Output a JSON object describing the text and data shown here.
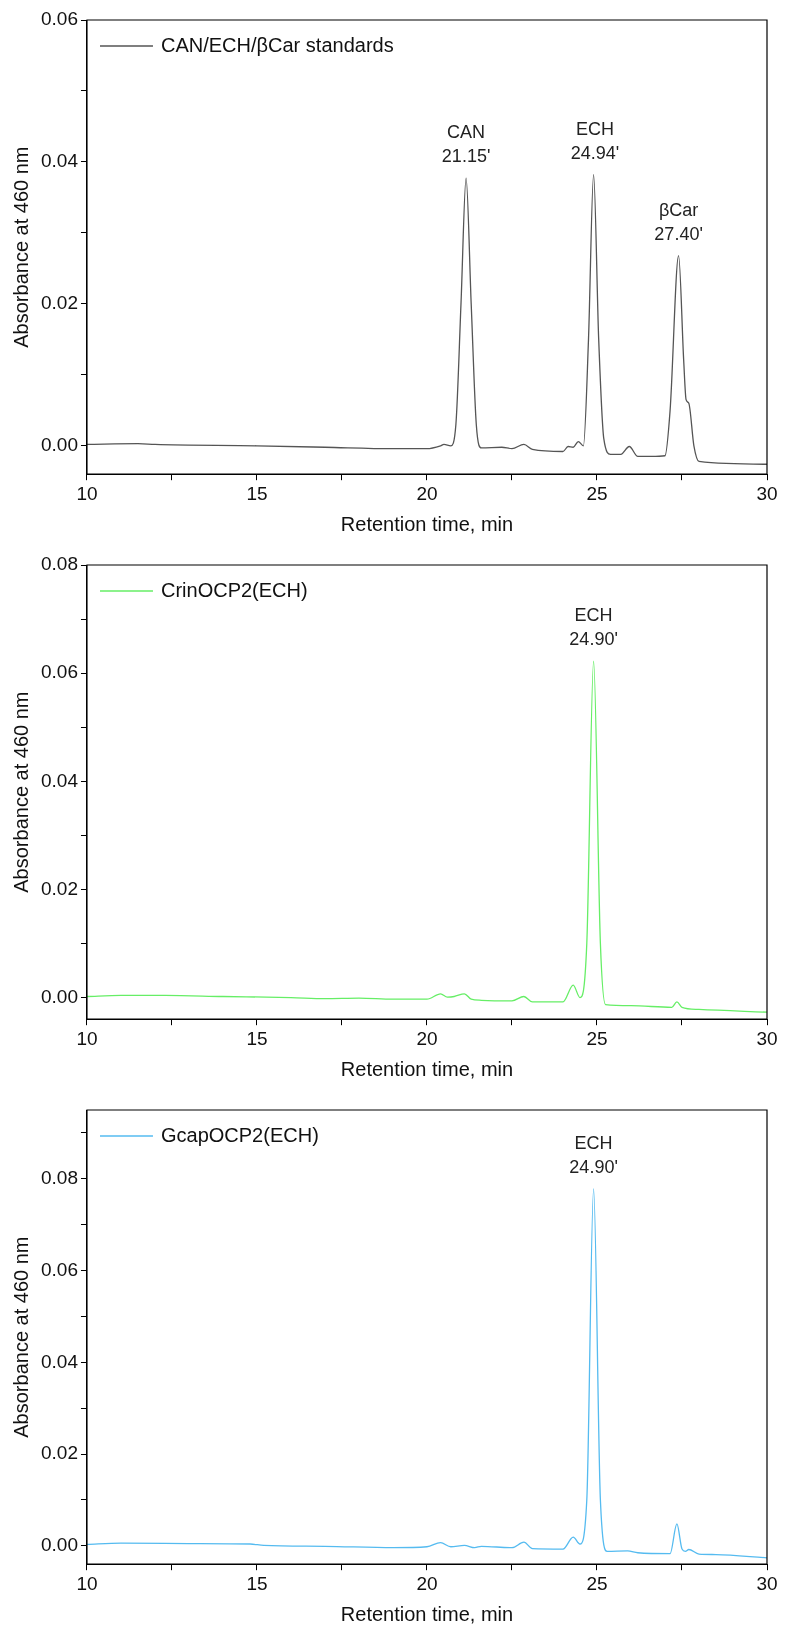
{
  "chart_data": [
    {
      "type": "line",
      "xlabel": "Retention time, min",
      "ylabel": "Absorbance at 460 nm",
      "legend": "top left",
      "marker": "none",
      "xlim": [
        10,
        30
      ],
      "ylim": [
        -0.004,
        0.06
      ],
      "xticks": [
        10,
        {
          "value": 12.5,
          "label": null
        },
        15,
        {
          "value": 17.5,
          "label": null
        },
        20,
        {
          "value": 22.5,
          "label": null
        },
        25,
        {
          "value": 27.5,
          "label": null
        },
        30
      ],
      "yticks": [
        {
          "value": 0,
          "label": "0.00"
        },
        {
          "value": 0.01,
          "label": null
        },
        {
          "value": 0.02,
          "label": "0.02"
        },
        {
          "value": 0.03,
          "label": null
        },
        {
          "value": 0.04,
          "label": "0.04"
        },
        {
          "value": 0.05,
          "label": null
        },
        {
          "value": 0.06,
          "label": "0.06"
        }
      ],
      "series": [
        {
          "name": "CAN/ECH/βCar standards",
          "color": "#555555",
          "x": [
            10,
            11.5,
            12,
            15,
            17,
            19,
            20,
            20.4,
            20.5,
            20.7,
            20.85,
            21,
            21.15,
            21.3,
            21.45,
            21.6,
            22.2,
            22.5,
            22.85,
            23.1,
            24,
            24.15,
            24.3,
            24.45,
            24.6,
            24.75,
            24.9,
            25.05,
            25.2,
            25.4,
            25.7,
            25.95,
            26.2,
            26.6,
            27,
            27.15,
            27.4,
            27.55,
            27.62,
            27.7,
            27.85,
            28,
            30
          ],
          "values": [
            0.0002,
            0.0003,
            0.0002,
            0,
            -0.0002,
            -0.0004,
            -0.0004,
            0,
            0.0002,
            0,
            0.003,
            0.02,
            0.0377,
            0.02,
            0.003,
            -0.0003,
            -0.0002,
            -0.0004,
            0.0002,
            -0.0005,
            -0.0008,
            -0.0001,
            -0.0002,
            0.0006,
            0,
            0.015,
            0.0382,
            0.015,
            0.001,
            -0.0012,
            -0.0012,
            -0.0001,
            -0.0015,
            -0.0015,
            -0.0014,
            0.005,
            0.0268,
            0.012,
            0.0065,
            0.006,
            0,
            -0.0022,
            -0.0026
          ]
        }
      ],
      "annotations": [
        {
          "text": "CAN\n21.15'",
          "x": 21.15,
          "y": 0.0377
        },
        {
          "text": "ECH\n24.94'",
          "x": 24.94,
          "y": 0.0382
        },
        {
          "text": "βCar\n27.40'",
          "x": 27.4,
          "y": 0.0268
        }
      ]
    },
    {
      "type": "line",
      "xlabel": "Retention time, min",
      "ylabel": "Absorbance at 460 nm",
      "legend": "top left",
      "marker": "none",
      "xlim": [
        10,
        30
      ],
      "ylim": [
        -0.004,
        0.08
      ],
      "xticks": [
        10,
        {
          "value": 12.5,
          "label": null
        },
        15,
        {
          "value": 17.5,
          "label": null
        },
        20,
        {
          "value": 22.5,
          "label": null
        },
        25,
        {
          "value": 27.5,
          "label": null
        },
        30
      ],
      "yticks": [
        {
          "value": 0,
          "label": "0.00"
        },
        {
          "value": 0.01,
          "label": null
        },
        {
          "value": 0.02,
          "label": "0.02"
        },
        {
          "value": 0.03,
          "label": null
        },
        {
          "value": 0.04,
          "label": "0.04"
        },
        {
          "value": 0.05,
          "label": null
        },
        {
          "value": 0.06,
          "label": "0.06"
        },
        {
          "value": 0.07,
          "label": null
        },
        {
          "value": 0.08,
          "label": "0.08"
        }
      ],
      "series": [
        {
          "name": "CrinOCP2(ECH)",
          "color": "#66ee66",
          "x": [
            10,
            11,
            12.3,
            14,
            16,
            17,
            18,
            19,
            20,
            20.4,
            20.6,
            20.8,
            21.1,
            21.3,
            21.6,
            22.5,
            22.85,
            23.1,
            24,
            24.3,
            24.5,
            24.7,
            24.9,
            25.1,
            25.25,
            26,
            27.2,
            27.35,
            27.5,
            28,
            30
          ],
          "values": [
            0.0002,
            0.0004,
            0.0004,
            0.0002,
            0,
            -0.0002,
            -0.0001,
            -0.0003,
            -0.0003,
            0.0007,
            0.0001,
            0.0002,
            0.0007,
            -0.0003,
            -0.0005,
            -0.0006,
            0.0002,
            -0.0008,
            -0.0008,
            0.0023,
            0,
            0.01,
            0.0622,
            0.01,
            -0.0013,
            -0.0015,
            -0.0018,
            -0.0008,
            -0.0018,
            -0.0022,
            -0.0027
          ]
        }
      ],
      "annotations": [
        {
          "text": "ECH\n24.90'",
          "x": 24.9,
          "y": 0.0622
        }
      ]
    },
    {
      "type": "line",
      "xlabel": "Retention time, min",
      "ylabel": "Absorbance at 460 nm",
      "legend": "top left",
      "marker": "none",
      "xlim": [
        10,
        30
      ],
      "ylim": [
        -0.004,
        0.095
      ],
      "xticks": [
        10,
        {
          "value": 12.5,
          "label": null
        },
        15,
        {
          "value": 17.5,
          "label": null
        },
        20,
        {
          "value": 22.5,
          "label": null
        },
        25,
        {
          "value": 27.5,
          "label": null
        },
        30
      ],
      "yticks": [
        {
          "value": 0,
          "label": "0.00"
        },
        {
          "value": 0.01,
          "label": null
        },
        {
          "value": 0.02,
          "label": "0.02"
        },
        {
          "value": 0.03,
          "label": null
        },
        {
          "value": 0.04,
          "label": "0.04"
        },
        {
          "value": 0.05,
          "label": null
        },
        {
          "value": 0.06,
          "label": "0.06"
        },
        {
          "value": 0.07,
          "label": null
        },
        {
          "value": 0.08,
          "label": "0.08"
        },
        {
          "value": 0.09,
          "label": null
        }
      ],
      "series": [
        {
          "name": "GcapOCP2(ECH)",
          "color": "#55bbf0",
          "x": [
            10,
            11,
            13,
            14.8,
            15.2,
            17,
            19,
            20,
            20.4,
            20.7,
            21.1,
            21.4,
            21.6,
            22.5,
            22.85,
            23.1,
            24,
            24.3,
            24.5,
            24.7,
            24.9,
            25.1,
            25.3,
            25.9,
            26.2,
            27.15,
            27.35,
            27.5,
            27.6,
            27.7,
            28,
            28.5,
            30
          ],
          "values": [
            0.0003,
            0.0006,
            0.0005,
            0.0004,
            0.0001,
            -0.0001,
            -0.0004,
            -0.0002,
            0.0007,
            -0.0002,
            0.0001,
            -0.0004,
            -0.0001,
            -0.0004,
            0.0008,
            -0.0006,
            -0.0007,
            0.0019,
            0.0004,
            0.01,
            0.0778,
            0.01,
            -0.0012,
            -0.0011,
            -0.0015,
            -0.0017,
            0.0048,
            -0.0007,
            -0.0012,
            -0.0008,
            -0.0018,
            -0.0019,
            -0.0026
          ]
        }
      ],
      "annotations": [
        {
          "text": "ECH\n24.90'",
          "x": 24.9,
          "y": 0.0778
        }
      ]
    }
  ]
}
